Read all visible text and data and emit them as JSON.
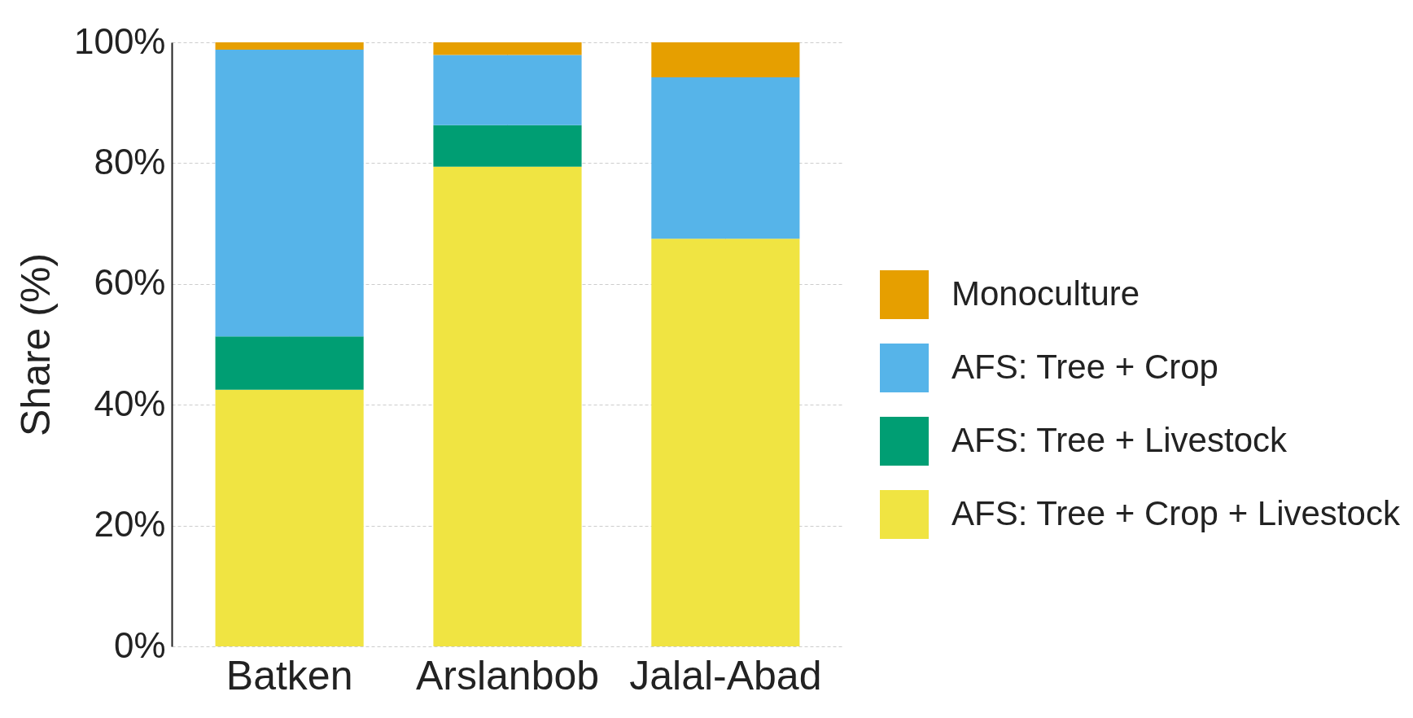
{
  "chart_data": {
    "type": "bar",
    "stacked": true,
    "ylabel": "Share (%)",
    "categories": [
      "Batken",
      "Arslanbob",
      "Jalal-Abad"
    ],
    "series": [
      {
        "name": "AFS: Tree + Crop + Livestock",
        "color": "#f0e442",
        "values": [
          42.5,
          79.4,
          67.5
        ]
      },
      {
        "name": "AFS: Tree + Livestock",
        "color": "#009e73",
        "values": [
          8.8,
          6.9,
          0
        ]
      },
      {
        "name": "AFS: Tree + Crop",
        "color": "#56b4e9",
        "values": [
          47.5,
          11.6,
          26.7
        ]
      },
      {
        "name": "Monoculture",
        "color": "#e69f00",
        "values": [
          1.2,
          2.1,
          5.8
        ]
      }
    ],
    "ylim": [
      0,
      100
    ],
    "yticks": [
      {
        "value": 0,
        "label": "0%"
      },
      {
        "value": 20,
        "label": "20%"
      },
      {
        "value": 40,
        "label": "40%"
      },
      {
        "value": 60,
        "label": "60%"
      },
      {
        "value": 80,
        "label": "80%"
      },
      {
        "value": 100,
        "label": "100%"
      }
    ],
    "grid": true,
    "legend": "right"
  }
}
